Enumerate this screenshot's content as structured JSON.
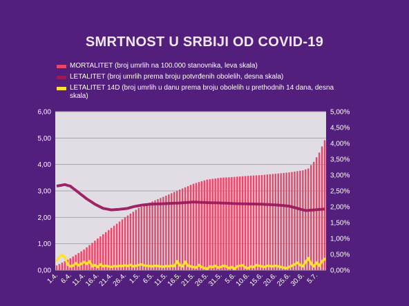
{
  "chart_data": {
    "type": "bar+line",
    "title": "SMRTNOST U SRBIJI OD COVID-19",
    "legend": [
      {
        "label": "MORTALITET (broj umrlih na 100.000 stanovnika, leva skala)",
        "color": "#e8466a"
      },
      {
        "label": "LETALITET (broj umrlih prema broju potvrđenih obolelih, desna skala)",
        "color": "#9a1a5e"
      },
      {
        "label": "LETALITET 14D (broj umrlih u danu prema broju obolelih u prethodnih 14 dana, desna skala)",
        "color": "#ffe033"
      }
    ],
    "left_axis": {
      "ylim": [
        0,
        6
      ],
      "ticks": [
        "0,00",
        "1,00",
        "2,00",
        "3,00",
        "4,00",
        "5,00",
        "6,00"
      ]
    },
    "right_axis": {
      "ylim": [
        0,
        5
      ],
      "ticks": [
        "0,00%",
        "0,50%",
        "1,00%",
        "1,50%",
        "2,00%",
        "2,50%",
        "3,00%",
        "3,50%",
        "4,00%",
        "4,50%",
        "5,00%"
      ]
    },
    "x_labels": [
      "1.4.",
      "6.4.",
      "11.4.",
      "16.4.",
      "21.4.",
      "26.4.",
      "1.5.",
      "6.5.",
      "11.5.",
      "16.5.",
      "21.5.",
      "26.5.",
      "31.5.",
      "5.6.",
      "10.6.",
      "15.6.",
      "20.6.",
      "25.6.",
      "30.6.",
      "5.7."
    ],
    "grid": true,
    "legend_position": "top-left",
    "n_days": 99,
    "mortalitet_keypoints": [
      [
        0,
        0.18
      ],
      [
        5,
        0.45
      ],
      [
        10,
        0.78
      ],
      [
        15,
        1.2
      ],
      [
        20,
        1.6
      ],
      [
        25,
        2.0
      ],
      [
        30,
        2.35
      ],
      [
        35,
        2.6
      ],
      [
        40,
        2.82
      ],
      [
        45,
        3.05
      ],
      [
        50,
        3.27
      ],
      [
        55,
        3.43
      ],
      [
        60,
        3.5
      ],
      [
        65,
        3.53
      ],
      [
        70,
        3.57
      ],
      [
        75,
        3.6
      ],
      [
        80,
        3.65
      ],
      [
        85,
        3.7
      ],
      [
        90,
        3.78
      ],
      [
        92,
        3.85
      ],
      [
        94,
        4.1
      ],
      [
        96,
        4.45
      ],
      [
        98,
        4.92
      ]
    ],
    "letalitet_keypoints": [
      [
        0,
        2.65
      ],
      [
        3,
        2.7
      ],
      [
        5,
        2.65
      ],
      [
        8,
        2.45
      ],
      [
        11,
        2.25
      ],
      [
        14,
        2.08
      ],
      [
        17,
        1.95
      ],
      [
        20,
        1.9
      ],
      [
        23,
        1.92
      ],
      [
        26,
        1.95
      ],
      [
        28,
        2.0
      ],
      [
        31,
        2.05
      ],
      [
        34,
        2.08
      ],
      [
        40,
        2.1
      ],
      [
        45,
        2.12
      ],
      [
        50,
        2.15
      ],
      [
        55,
        2.13
      ],
      [
        60,
        2.12
      ],
      [
        65,
        2.1
      ],
      [
        70,
        2.09
      ],
      [
        75,
        2.08
      ],
      [
        80,
        2.06
      ],
      [
        85,
        2.02
      ],
      [
        88,
        1.95
      ],
      [
        91,
        1.88
      ],
      [
        94,
        1.9
      ],
      [
        98,
        1.93
      ]
    ],
    "letalitet14d_values": [
      0.3,
      0.42,
      0.48,
      0.4,
      0.18,
      0.12,
      0.14,
      0.22,
      0.15,
      0.2,
      0.26,
      0.2,
      0.28,
      0.12,
      0.16,
      0.1,
      0.18,
      0.12,
      0.14,
      0.12,
      0.1,
      0.13,
      0.12,
      0.14,
      0.13,
      0.15,
      0.13,
      0.17,
      0.12,
      0.14,
      0.16,
      0.18,
      0.15,
      0.14,
      0.13,
      0.12,
      0.14,
      0.13,
      0.12,
      0.11,
      0.13,
      0.12,
      0.14,
      0.13,
      0.28,
      0.15,
      0.12,
      0.26,
      0.14,
      0.12,
      0.1,
      0.08,
      0.16,
      0.1,
      0.06,
      0.04,
      0.12,
      0.1,
      0.14,
      0.08,
      0.1,
      0.14,
      0.12,
      0.06,
      0.1,
      0.04,
      0.12,
      0.14,
      0.16,
      0.08,
      0.06,
      0.12,
      0.1,
      0.16,
      0.14,
      0.12,
      0.1,
      0.14,
      0.13,
      0.12,
      0.14,
      0.12,
      0.1,
      0.08,
      0.06,
      0.1,
      0.14,
      0.18,
      0.24,
      0.16,
      0.12,
      0.26,
      0.38,
      0.2,
      0.12,
      0.24,
      0.14,
      0.28,
      0.35
    ]
  }
}
